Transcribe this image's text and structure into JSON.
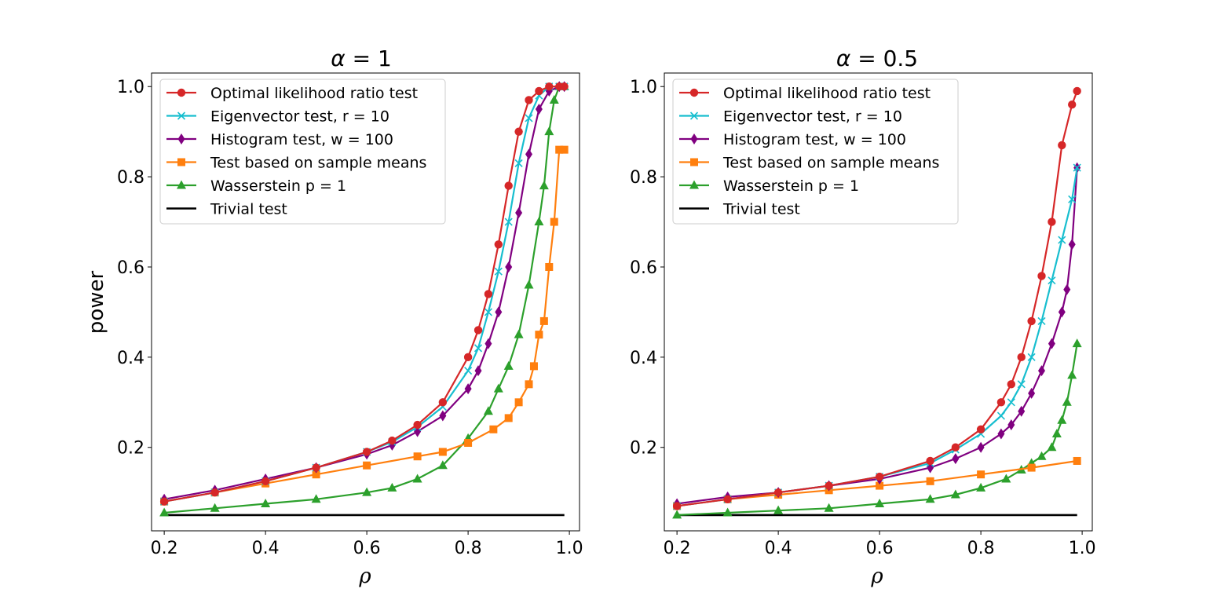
{
  "chart_data": [
    {
      "type": "line",
      "title_symbol": "α",
      "title_value": "= 1",
      "xlabel": "ρ",
      "ylabel": "power",
      "xlim": [
        0.175,
        1.02
      ],
      "ylim": [
        0.015,
        1.03
      ],
      "xticks": [
        0.2,
        0.4,
        0.6,
        0.8,
        1.0
      ],
      "xtick_labels": [
        "0.2",
        "0.4",
        "0.6",
        "0.8",
        "1.0"
      ],
      "yticks": [
        0.2,
        0.4,
        0.6,
        0.8,
        1.0
      ],
      "ytick_labels": [
        "0.2",
        "0.4",
        "0.6",
        "0.8",
        "1.0"
      ],
      "legend_position": "upper-left",
      "series": [
        {
          "name": "Optimal likelihood ratio test",
          "color": "#d62728",
          "marker": "circle",
          "x": [
            0.2,
            0.3,
            0.4,
            0.5,
            0.6,
            0.65,
            0.7,
            0.75,
            0.8,
            0.82,
            0.84,
            0.86,
            0.88,
            0.9,
            0.92,
            0.94,
            0.96,
            0.98,
            0.99
          ],
          "y": [
            0.08,
            0.1,
            0.125,
            0.155,
            0.19,
            0.215,
            0.25,
            0.3,
            0.4,
            0.46,
            0.54,
            0.65,
            0.78,
            0.9,
            0.97,
            0.99,
            1.0,
            1.0,
            1.0
          ]
        },
        {
          "name": "Eigenvector test, r = 10",
          "color": "#17becf",
          "marker": "x",
          "x": [
            0.2,
            0.3,
            0.4,
            0.5,
            0.6,
            0.65,
            0.7,
            0.75,
            0.8,
            0.82,
            0.84,
            0.86,
            0.88,
            0.9,
            0.92,
            0.94,
            0.96,
            0.98,
            0.99
          ],
          "y": [
            0.08,
            0.1,
            0.125,
            0.155,
            0.19,
            0.212,
            0.245,
            0.29,
            0.37,
            0.42,
            0.5,
            0.59,
            0.7,
            0.83,
            0.93,
            0.98,
            1.0,
            1.0,
            1.0
          ]
        },
        {
          "name": "Histogram test, w = 100",
          "color": "#800080",
          "marker": "diamond",
          "x": [
            0.2,
            0.3,
            0.4,
            0.5,
            0.6,
            0.65,
            0.7,
            0.75,
            0.8,
            0.82,
            0.84,
            0.86,
            0.88,
            0.9,
            0.92,
            0.94,
            0.96,
            0.98,
            0.99
          ],
          "y": [
            0.085,
            0.105,
            0.13,
            0.155,
            0.185,
            0.205,
            0.235,
            0.27,
            0.33,
            0.37,
            0.43,
            0.5,
            0.6,
            0.72,
            0.85,
            0.95,
            0.99,
            1.0,
            1.0
          ]
        },
        {
          "name": "Test based on sample means",
          "color": "#ff7f0e",
          "marker": "square",
          "x": [
            0.2,
            0.3,
            0.4,
            0.5,
            0.6,
            0.7,
            0.75,
            0.8,
            0.85,
            0.88,
            0.9,
            0.92,
            0.93,
            0.94,
            0.95,
            0.96,
            0.97,
            0.98,
            0.99
          ],
          "y": [
            0.08,
            0.1,
            0.12,
            0.14,
            0.16,
            0.18,
            0.19,
            0.21,
            0.24,
            0.265,
            0.3,
            0.34,
            0.38,
            0.45,
            0.48,
            0.6,
            0.7,
            0.86,
            0.86
          ]
        },
        {
          "name": "Wasserstein p = 1",
          "color": "#2ca02c",
          "marker": "triangle",
          "x": [
            0.2,
            0.3,
            0.4,
            0.5,
            0.6,
            0.65,
            0.7,
            0.75,
            0.8,
            0.84,
            0.86,
            0.88,
            0.9,
            0.92,
            0.94,
            0.95,
            0.96,
            0.97,
            0.98,
            0.99
          ],
          "y": [
            0.055,
            0.065,
            0.075,
            0.085,
            0.1,
            0.11,
            0.13,
            0.16,
            0.22,
            0.28,
            0.33,
            0.38,
            0.45,
            0.56,
            0.7,
            0.78,
            0.9,
            0.97,
            1.0,
            1.0
          ]
        },
        {
          "name": "Trivial test",
          "color": "#000000",
          "marker": "none",
          "x": [
            0.2,
            0.99
          ],
          "y": [
            0.05,
            0.05
          ]
        }
      ]
    },
    {
      "type": "line",
      "title_symbol": "α",
      "title_value": "= 0.5",
      "xlabel": "ρ",
      "ylabel": "",
      "xlim": [
        0.175,
        1.02
      ],
      "ylim": [
        0.015,
        1.03
      ],
      "xticks": [
        0.2,
        0.4,
        0.6,
        0.8,
        1.0
      ],
      "xtick_labels": [
        "0.2",
        "0.4",
        "0.6",
        "0.8",
        "1.0"
      ],
      "yticks": [
        0.2,
        0.4,
        0.6,
        0.8,
        1.0
      ],
      "ytick_labels": [
        "0.2",
        "0.4",
        "0.6",
        "0.8",
        "1.0"
      ],
      "legend_position": "upper-left",
      "series": [
        {
          "name": "Optimal likelihood ratio test",
          "color": "#d62728",
          "marker": "circle",
          "x": [
            0.2,
            0.3,
            0.4,
            0.5,
            0.6,
            0.7,
            0.75,
            0.8,
            0.84,
            0.86,
            0.88,
            0.9,
            0.92,
            0.94,
            0.96,
            0.98,
            0.99
          ],
          "y": [
            0.07,
            0.085,
            0.1,
            0.115,
            0.135,
            0.17,
            0.2,
            0.24,
            0.3,
            0.34,
            0.4,
            0.48,
            0.58,
            0.7,
            0.87,
            0.96,
            0.99
          ]
        },
        {
          "name": "Eigenvector test, r = 10",
          "color": "#17becf",
          "marker": "x",
          "x": [
            0.2,
            0.3,
            0.4,
            0.5,
            0.6,
            0.7,
            0.75,
            0.8,
            0.84,
            0.86,
            0.88,
            0.9,
            0.92,
            0.94,
            0.96,
            0.98,
            0.99
          ],
          "y": [
            0.07,
            0.085,
            0.1,
            0.115,
            0.135,
            0.165,
            0.195,
            0.23,
            0.27,
            0.3,
            0.34,
            0.4,
            0.48,
            0.57,
            0.66,
            0.75,
            0.82
          ]
        },
        {
          "name": "Histogram test, w = 100",
          "color": "#800080",
          "marker": "diamond",
          "x": [
            0.2,
            0.3,
            0.4,
            0.5,
            0.6,
            0.7,
            0.75,
            0.8,
            0.84,
            0.86,
            0.88,
            0.9,
            0.92,
            0.94,
            0.96,
            0.97,
            0.98,
            0.99
          ],
          "y": [
            0.075,
            0.09,
            0.1,
            0.115,
            0.13,
            0.155,
            0.175,
            0.2,
            0.23,
            0.25,
            0.28,
            0.32,
            0.37,
            0.43,
            0.5,
            0.55,
            0.65,
            0.82
          ]
        },
        {
          "name": "Test based on sample means",
          "color": "#ff7f0e",
          "marker": "square",
          "x": [
            0.2,
            0.3,
            0.4,
            0.5,
            0.6,
            0.7,
            0.8,
            0.9,
            0.99
          ],
          "y": [
            0.07,
            0.085,
            0.095,
            0.105,
            0.115,
            0.125,
            0.14,
            0.155,
            0.17
          ]
        },
        {
          "name": "Wasserstein p = 1",
          "color": "#2ca02c",
          "marker": "triangle",
          "x": [
            0.2,
            0.3,
            0.4,
            0.5,
            0.6,
            0.7,
            0.75,
            0.8,
            0.85,
            0.88,
            0.9,
            0.92,
            0.94,
            0.95,
            0.96,
            0.97,
            0.98,
            0.99
          ],
          "y": [
            0.05,
            0.055,
            0.06,
            0.065,
            0.075,
            0.085,
            0.095,
            0.11,
            0.13,
            0.15,
            0.165,
            0.18,
            0.2,
            0.23,
            0.26,
            0.3,
            0.36,
            0.43
          ]
        },
        {
          "name": "Trivial test",
          "color": "#000000",
          "marker": "none",
          "x": [
            0.2,
            0.99
          ],
          "y": [
            0.05,
            0.05
          ]
        }
      ]
    }
  ]
}
